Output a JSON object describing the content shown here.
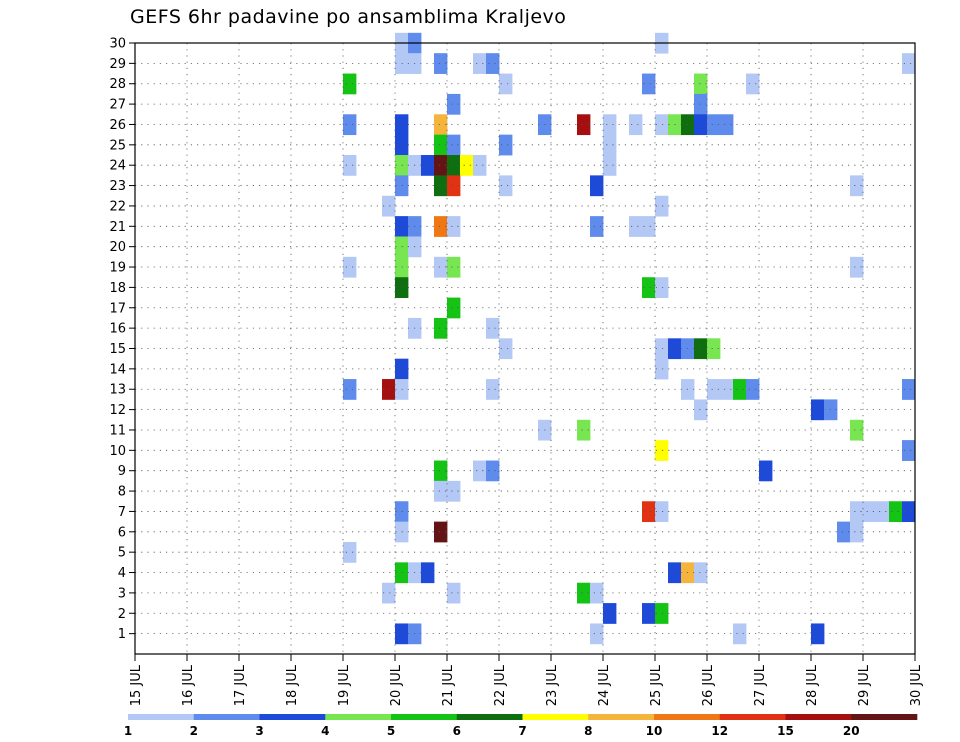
{
  "chart_data": {
    "type": "heatmap",
    "title": "GEFS 6hr padavine po ansamblima Kraljevo",
    "x_tick_labels": [
      "15 JUL",
      "16 JUL",
      "17 JUL",
      "18 JUL",
      "19 JUL",
      "20 JUL",
      "21 JUL",
      "22 JUL",
      "23 JUL",
      "24 JUL",
      "25 JUL",
      "26 JUL",
      "27 JUL",
      "28 JUL",
      "29 JUL",
      "30 JUL"
    ],
    "x_range_days": [
      15,
      30
    ],
    "x_step": "6hr",
    "y_tick_labels": [
      "1",
      "2",
      "3",
      "4",
      "5",
      "6",
      "7",
      "8",
      "9",
      "10",
      "11",
      "12",
      "13",
      "14",
      "15",
      "16",
      "17",
      "18",
      "19",
      "20",
      "21",
      "22",
      "23",
      "24",
      "25",
      "26",
      "27",
      "28",
      "29",
      "30"
    ],
    "y_range": [
      0,
      30
    ],
    "grid": "dotted",
    "colorbar": {
      "labels": [
        "1",
        "2",
        "3",
        "4",
        "5",
        "6",
        "7",
        "8",
        "10",
        "12",
        "15",
        "20"
      ],
      "colors": [
        "#b4c8f5",
        "#5f8cec",
        "#1e4ad9",
        "#78e650",
        "#14c314",
        "#0f6e0f",
        "#ffff00",
        "#f5b43c",
        "#f07814",
        "#e13214",
        "#a50f0f",
        "#641414"
      ]
    },
    "cells": [
      {
        "m": 30,
        "d": 20.0,
        "c": 0
      },
      {
        "m": 30,
        "d": 20.25,
        "c": 1
      },
      {
        "m": 30,
        "d": 25.0,
        "c": 0
      },
      {
        "m": 29,
        "d": 20.0,
        "c": 0
      },
      {
        "m": 29,
        "d": 20.25,
        "c": 0
      },
      {
        "m": 29,
        "d": 20.75,
        "c": 1
      },
      {
        "m": 29,
        "d": 21.5,
        "c": 0
      },
      {
        "m": 29,
        "d": 21.75,
        "c": 1
      },
      {
        "m": 29,
        "d": 29.75,
        "c": 0
      },
      {
        "m": 28,
        "d": 19.0,
        "c": 4
      },
      {
        "m": 28,
        "d": 22.0,
        "c": 0
      },
      {
        "m": 28,
        "d": 24.75,
        "c": 1
      },
      {
        "m": 28,
        "d": 25.75,
        "c": 3
      },
      {
        "m": 28,
        "d": 26.75,
        "c": 0
      },
      {
        "m": 27,
        "d": 21.0,
        "c": 1
      },
      {
        "m": 27,
        "d": 25.75,
        "c": 1
      },
      {
        "m": 26,
        "d": 19.0,
        "c": 1
      },
      {
        "m": 26,
        "d": 20.0,
        "c": 2
      },
      {
        "m": 26,
        "d": 20.75,
        "c": 7
      },
      {
        "m": 26,
        "d": 22.75,
        "c": 1
      },
      {
        "m": 26,
        "d": 23.5,
        "c": 10
      },
      {
        "m": 26,
        "d": 24.0,
        "c": 0
      },
      {
        "m": 26,
        "d": 24.5,
        "c": 0
      },
      {
        "m": 26,
        "d": 25.0,
        "c": 0
      },
      {
        "m": 26,
        "d": 25.25,
        "c": 3
      },
      {
        "m": 26,
        "d": 25.5,
        "c": 5
      },
      {
        "m": 26,
        "d": 25.75,
        "c": 2
      },
      {
        "m": 26,
        "d": 26.0,
        "c": 1
      },
      {
        "m": 26,
        "d": 26.25,
        "c": 1
      },
      {
        "m": 25,
        "d": 20.0,
        "c": 2
      },
      {
        "m": 25,
        "d": 20.75,
        "c": 4
      },
      {
        "m": 25,
        "d": 21.0,
        "c": 1
      },
      {
        "m": 25,
        "d": 22.0,
        "c": 1
      },
      {
        "m": 25,
        "d": 24.0,
        "c": 0
      },
      {
        "m": 24,
        "d": 19.0,
        "c": 0
      },
      {
        "m": 24,
        "d": 20.0,
        "c": 3
      },
      {
        "m": 24,
        "d": 20.25,
        "c": 0
      },
      {
        "m": 24,
        "d": 20.5,
        "c": 2
      },
      {
        "m": 24,
        "d": 20.75,
        "c": 11
      },
      {
        "m": 24,
        "d": 21.0,
        "c": 5
      },
      {
        "m": 24,
        "d": 21.25,
        "c": 6
      },
      {
        "m": 24,
        "d": 21.5,
        "c": 0
      },
      {
        "m": 24,
        "d": 24.0,
        "c": 0
      },
      {
        "m": 23,
        "d": 20.0,
        "c": 1
      },
      {
        "m": 23,
        "d": 20.75,
        "c": 5
      },
      {
        "m": 23,
        "d": 21.0,
        "c": 9
      },
      {
        "m": 23,
        "d": 22.0,
        "c": 0
      },
      {
        "m": 23,
        "d": 23.75,
        "c": 2
      },
      {
        "m": 23,
        "d": 28.75,
        "c": 0
      },
      {
        "m": 22,
        "d": 19.75,
        "c": 0
      },
      {
        "m": 22,
        "d": 25.0,
        "c": 0
      },
      {
        "m": 21,
        "d": 20.0,
        "c": 2
      },
      {
        "m": 21,
        "d": 20.25,
        "c": 1
      },
      {
        "m": 21,
        "d": 20.75,
        "c": 8
      },
      {
        "m": 21,
        "d": 21.0,
        "c": 0
      },
      {
        "m": 21,
        "d": 23.75,
        "c": 1
      },
      {
        "m": 21,
        "d": 24.5,
        "c": 0
      },
      {
        "m": 21,
        "d": 24.75,
        "c": 0
      },
      {
        "m": 20,
        "d": 20.0,
        "c": 3
      },
      {
        "m": 20,
        "d": 20.25,
        "c": 0
      },
      {
        "m": 19,
        "d": 19.0,
        "c": 0
      },
      {
        "m": 19,
        "d": 20.0,
        "c": 3
      },
      {
        "m": 19,
        "d": 20.75,
        "c": 0
      },
      {
        "m": 19,
        "d": 21.0,
        "c": 3
      },
      {
        "m": 19,
        "d": 28.75,
        "c": 0
      },
      {
        "m": 18,
        "d": 20.0,
        "c": 5
      },
      {
        "m": 18,
        "d": 24.75,
        "c": 4
      },
      {
        "m": 18,
        "d": 25.0,
        "c": 0
      },
      {
        "m": 17,
        "d": 21.0,
        "c": 4
      },
      {
        "m": 16,
        "d": 20.25,
        "c": 0
      },
      {
        "m": 16,
        "d": 20.75,
        "c": 4
      },
      {
        "m": 16,
        "d": 21.75,
        "c": 0
      },
      {
        "m": 15,
        "d": 22.0,
        "c": 0
      },
      {
        "m": 15,
        "d": 25.0,
        "c": 0
      },
      {
        "m": 15,
        "d": 25.25,
        "c": 2
      },
      {
        "m": 15,
        "d": 25.5,
        "c": 1
      },
      {
        "m": 15,
        "d": 25.75,
        "c": 5
      },
      {
        "m": 15,
        "d": 26.0,
        "c": 3
      },
      {
        "m": 14,
        "d": 20.0,
        "c": 2
      },
      {
        "m": 14,
        "d": 25.0,
        "c": 0
      },
      {
        "m": 13,
        "d": 19.0,
        "c": 1
      },
      {
        "m": 13,
        "d": 19.75,
        "c": 10
      },
      {
        "m": 13,
        "d": 20.0,
        "c": 0
      },
      {
        "m": 13,
        "d": 21.75,
        "c": 0
      },
      {
        "m": 13,
        "d": 25.5,
        "c": 0
      },
      {
        "m": 13,
        "d": 26.0,
        "c": 0
      },
      {
        "m": 13,
        "d": 26.25,
        "c": 0
      },
      {
        "m": 13,
        "d": 26.5,
        "c": 4
      },
      {
        "m": 13,
        "d": 26.75,
        "c": 1
      },
      {
        "m": 13,
        "d": 29.75,
        "c": 0
      },
      {
        "m": 13,
        "d": 29.75,
        "c": 1
      },
      {
        "m": 12,
        "d": 25.75,
        "c": 0
      },
      {
        "m": 12,
        "d": 28.0,
        "c": 2
      },
      {
        "m": 12,
        "d": 28.25,
        "c": 1
      },
      {
        "m": 11,
        "d": 22.75,
        "c": 0
      },
      {
        "m": 11,
        "d": 23.5,
        "c": 3
      },
      {
        "m": 11,
        "d": 28.75,
        "c": 3
      },
      {
        "m": 10,
        "d": 25.0,
        "c": 6
      },
      {
        "m": 10,
        "d": 29.75,
        "c": 0
      },
      {
        "m": 10,
        "d": 29.75,
        "c": 1
      },
      {
        "m": 9,
        "d": 20.75,
        "c": 4
      },
      {
        "m": 9,
        "d": 21.5,
        "c": 0
      },
      {
        "m": 9,
        "d": 21.75,
        "c": 1
      },
      {
        "m": 9,
        "d": 27.0,
        "c": 2
      },
      {
        "m": 8,
        "d": 20.75,
        "c": 0
      },
      {
        "m": 8,
        "d": 21.0,
        "c": 0
      },
      {
        "m": 7,
        "d": 20.0,
        "c": 1
      },
      {
        "m": 7,
        "d": 24.75,
        "c": 9
      },
      {
        "m": 7,
        "d": 25.0,
        "c": 0
      },
      {
        "m": 7,
        "d": 28.75,
        "c": 0
      },
      {
        "m": 7,
        "d": 29.0,
        "c": 0
      },
      {
        "m": 7,
        "d": 29.25,
        "c": 0
      },
      {
        "m": 7,
        "d": 29.5,
        "c": 4
      },
      {
        "m": 7,
        "d": 29.75,
        "c": 2
      },
      {
        "m": 6,
        "d": 20.0,
        "c": 0
      },
      {
        "m": 6,
        "d": 20.75,
        "c": 11
      },
      {
        "m": 6,
        "d": 28.5,
        "c": 1
      },
      {
        "m": 6,
        "d": 28.75,
        "c": 0
      },
      {
        "m": 5,
        "d": 19.0,
        "c": 0
      },
      {
        "m": 4,
        "d": 20.0,
        "c": 4
      },
      {
        "m": 4,
        "d": 20.25,
        "c": 0
      },
      {
        "m": 4,
        "d": 20.5,
        "c": 2
      },
      {
        "m": 4,
        "d": 25.25,
        "c": 2
      },
      {
        "m": 4,
        "d": 25.5,
        "c": 7
      },
      {
        "m": 4,
        "d": 25.75,
        "c": 0
      },
      {
        "m": 3,
        "d": 19.75,
        "c": 0
      },
      {
        "m": 3,
        "d": 21.0,
        "c": 0
      },
      {
        "m": 3,
        "d": 23.5,
        "c": 4
      },
      {
        "m": 3,
        "d": 23.75,
        "c": 0
      },
      {
        "m": 2,
        "d": 24.0,
        "c": 2
      },
      {
        "m": 2,
        "d": 24.75,
        "c": 2
      },
      {
        "m": 2,
        "d": 25.0,
        "c": 4
      },
      {
        "m": 1,
        "d": 20.0,
        "c": 2
      },
      {
        "m": 1,
        "d": 20.25,
        "c": 1
      },
      {
        "m": 1,
        "d": 23.75,
        "c": 0
      },
      {
        "m": 1,
        "d": 26.5,
        "c": 0
      },
      {
        "m": 1,
        "d": 28.0,
        "c": 2
      }
    ]
  }
}
